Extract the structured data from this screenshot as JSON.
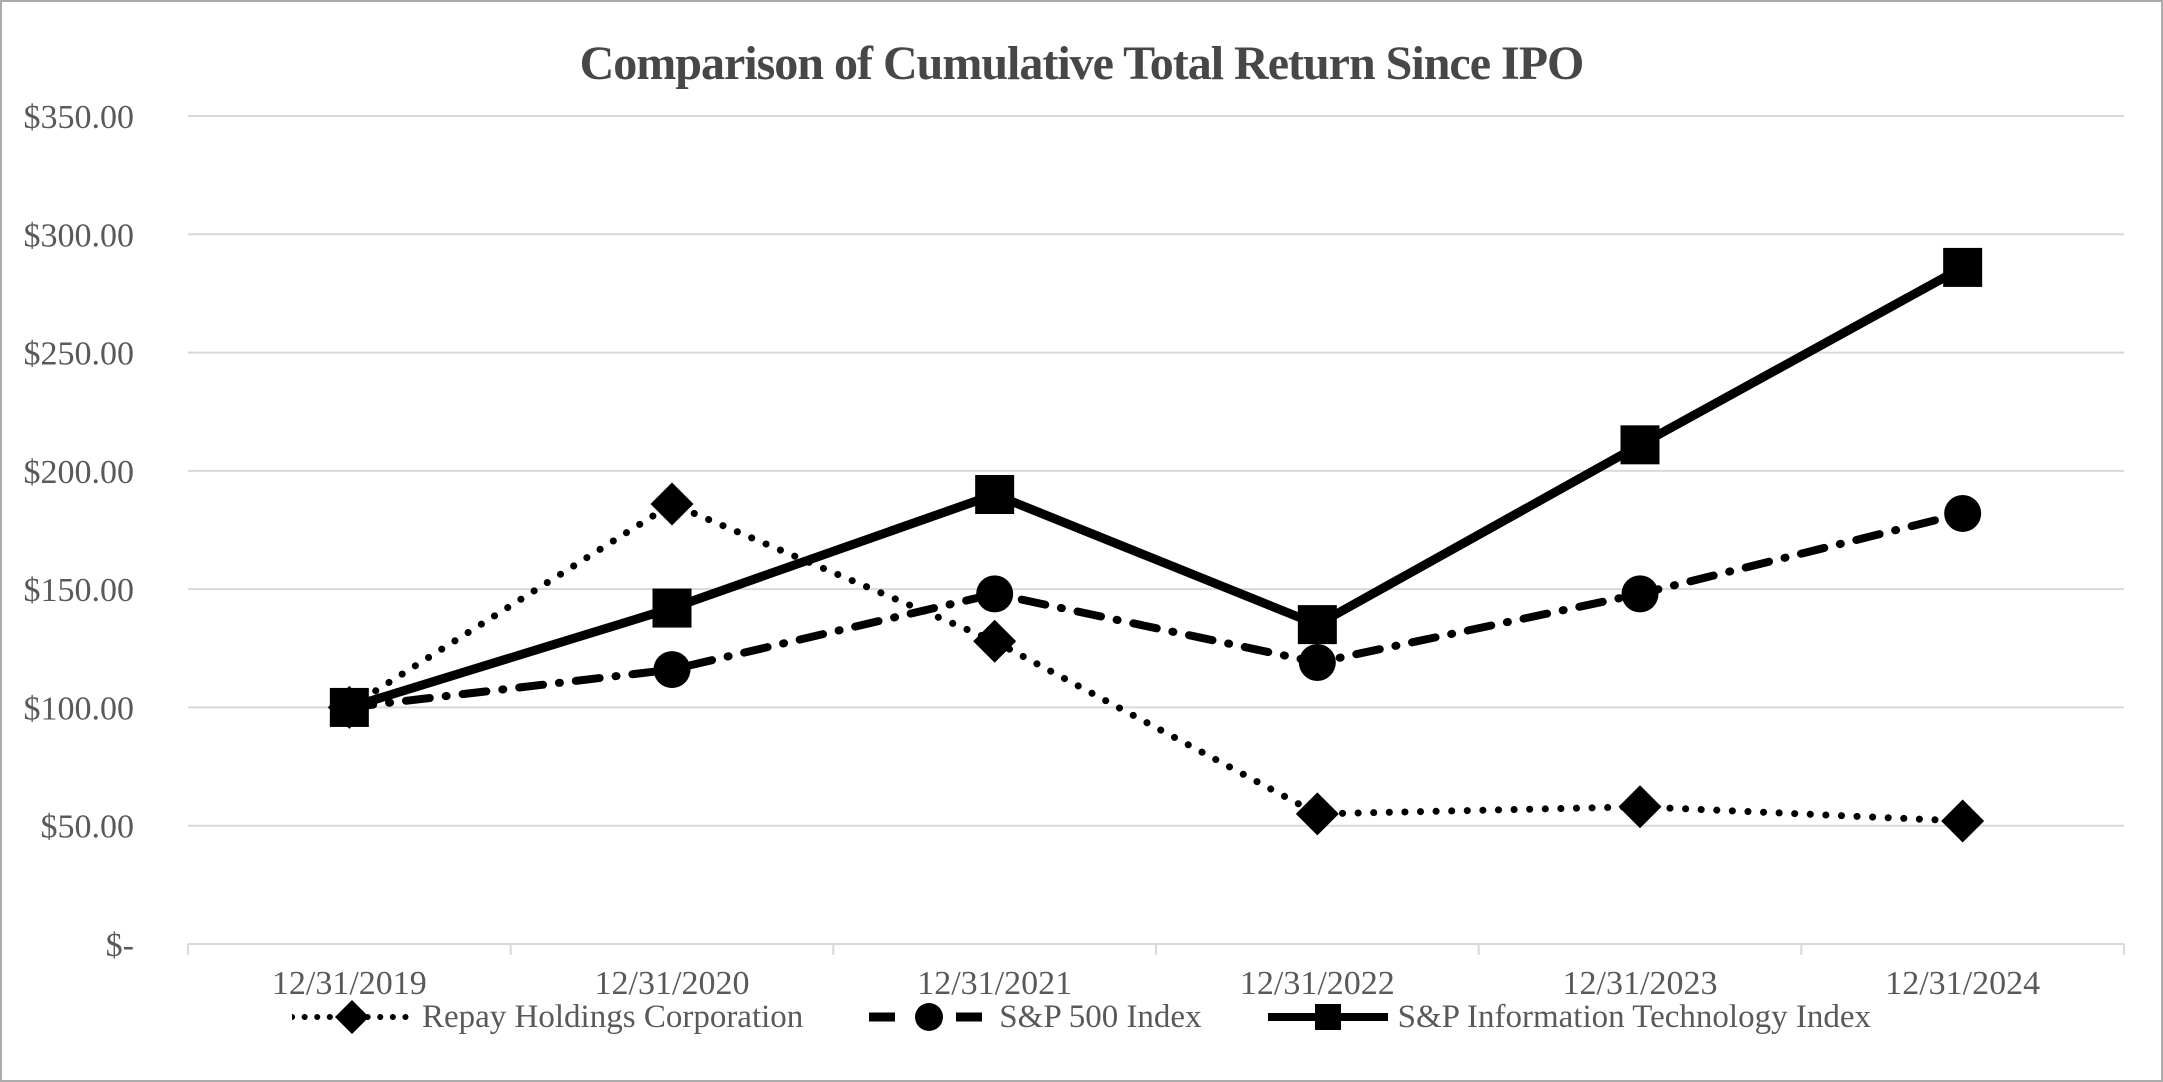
{
  "chart_data": {
    "type": "line",
    "title": "Comparison of Cumulative Total Return Since IPO",
    "x_categories": [
      "12/31/2019",
      "12/31/2020",
      "12/31/2021",
      "12/31/2022",
      "12/31/2023",
      "12/31/2024"
    ],
    "y_axis": {
      "ticks": [
        {
          "label": "$350.00",
          "value": 350
        },
        {
          "label": "$300.00",
          "value": 300
        },
        {
          "label": "$250.00",
          "value": 250
        },
        {
          "label": "$200.00",
          "value": 200
        },
        {
          "label": "$150.00",
          "value": 150
        },
        {
          "label": "$100.00",
          "value": 100
        },
        {
          "label": "$50.00",
          "value": 50
        },
        {
          "label": "$-",
          "value": 0
        }
      ],
      "range": [
        0,
        350
      ]
    },
    "grid": true,
    "legend_position": "bottom",
    "series": [
      {
        "name": "Repay Holdings Corporation",
        "marker": "diamond",
        "line_style": "dotted",
        "values": [
          100,
          186,
          128,
          55,
          58,
          52
        ]
      },
      {
        "name": "S&P 500 Index",
        "marker": "circle",
        "line_style": "dash-dot",
        "values": [
          100,
          116,
          148,
          119,
          148,
          182
        ]
      },
      {
        "name": "S&P Information Technology Index",
        "marker": "square",
        "line_style": "solid",
        "values": [
          100,
          142,
          190,
          135,
          211,
          286
        ]
      }
    ],
    "colors": {
      "series": "#000000",
      "gridline": "#d9d9d9",
      "axis_line": "#d9d9d9",
      "title_text": "#474747",
      "label_text": "#595959",
      "border": "#ababab",
      "background": "#ffffff"
    }
  }
}
